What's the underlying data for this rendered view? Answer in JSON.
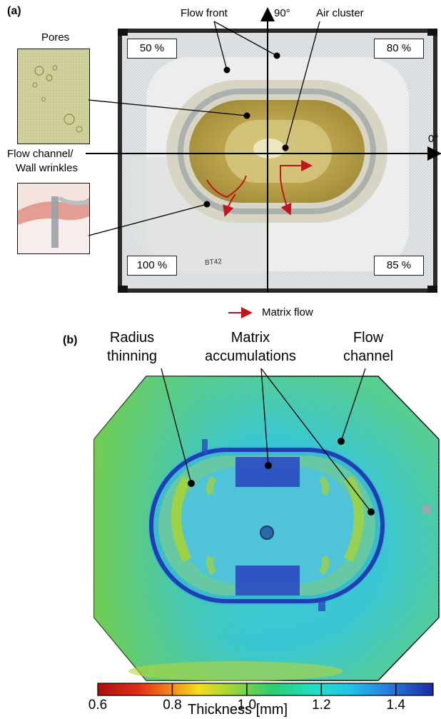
{
  "panel_a": {
    "letter": "(a)",
    "labels": {
      "pores": "Pores",
      "flow_front": "Flow front",
      "angle_90": "90°",
      "air_cluster": "Air cluster",
      "angle_0": "0°",
      "flow_channel_line1": "Flow channel/",
      "flow_channel_line2": "Wall wrinkles",
      "pct_top_left": "50 %",
      "pct_top_right": "80 %",
      "pct_bottom_left": "100 %",
      "pct_bottom_right": "85 %",
      "legend_matrix_flow": "Matrix flow",
      "handwriting": "BT42"
    },
    "colors": {
      "arrow": "#c0151b"
    }
  },
  "panel_b": {
    "letter": "(b)",
    "labels": {
      "radius_line1": "Radius",
      "radius_line2": "thinning",
      "matrix_line1": "Matrix",
      "matrix_line2": "accumulations",
      "flow_line1": "Flow",
      "flow_line2": "channel"
    },
    "colorbar": {
      "ticks": [
        "0.6",
        "0.8",
        "1.0",
        "1.2",
        "1.4"
      ],
      "title": "Thickness [mm]",
      "range": [
        0.6,
        1.5
      ]
    }
  }
}
